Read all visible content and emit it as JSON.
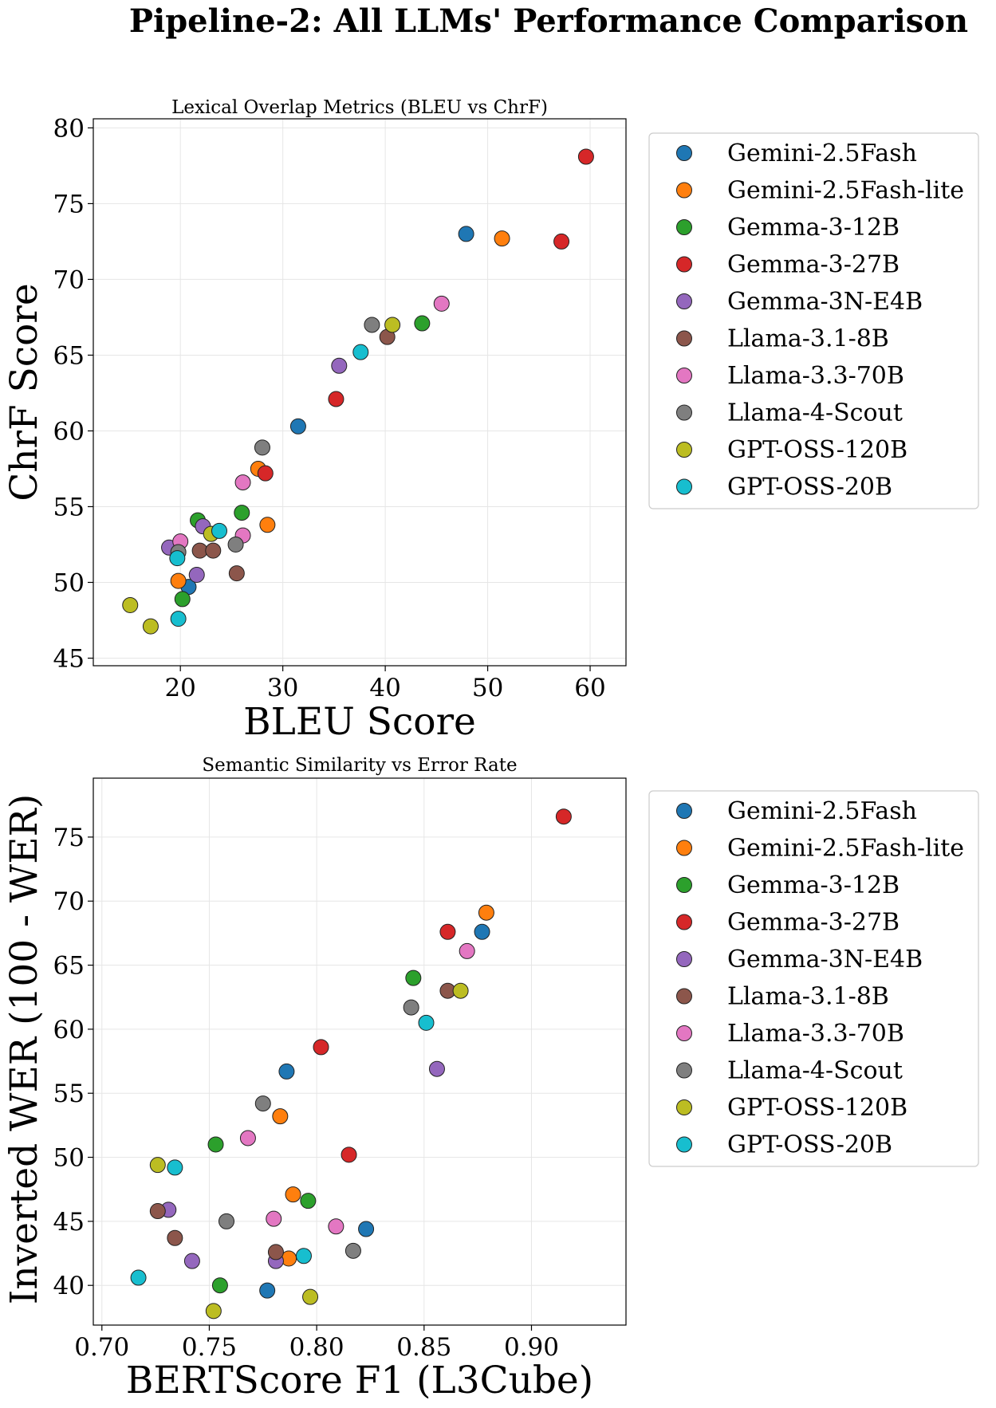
{
  "figure_title": "Pipeline-2: All LLMs' Performance Comparison",
  "models": [
    {
      "name": "Gemini-2.5Fash",
      "color": "#1f77b4"
    },
    {
      "name": "Gemini-2.5Fash-lite",
      "color": "#ff7f0e"
    },
    {
      "name": "Gemma-3-12B",
      "color": "#2ca02c"
    },
    {
      "name": "Gemma-3-27B",
      "color": "#d62728"
    },
    {
      "name": "Gemma-3N-E4B",
      "color": "#9467bd"
    },
    {
      "name": "Llama-3.1-8B",
      "color": "#8c564b"
    },
    {
      "name": "Llama-3.3-70B",
      "color": "#e377c2"
    },
    {
      "name": "Llama-4-Scout",
      "color": "#7f7f7f"
    },
    {
      "name": "GPT-OSS-120B",
      "color": "#bcbd22"
    },
    {
      "name": "GPT-OSS-20B",
      "color": "#17becf"
    }
  ],
  "chart_data": [
    {
      "type": "scatter",
      "title": "Lexical Overlap Metrics (BLEU vs ChrF)",
      "xlabel": "BLEU Score",
      "ylabel": "ChrF Score",
      "xlim": [
        11.5,
        63.5
      ],
      "ylim": [
        44.5,
        80.6
      ],
      "xticks": [
        20,
        30,
        40,
        50,
        60
      ],
      "xtick_labels": [
        "20",
        "30",
        "40",
        "50",
        "60"
      ],
      "yticks": [
        45,
        50,
        55,
        60,
        65,
        70,
        75,
        80
      ],
      "ytick_labels": [
        "45",
        "50",
        "55",
        "60",
        "65",
        "70",
        "75",
        "80"
      ],
      "grid": true,
      "legend_position": "outside-right",
      "series": [
        {
          "name": "Gemini-2.5Fash",
          "points": [
            [
              47.9,
              73.0
            ],
            [
              31.5,
              60.3
            ],
            [
              20.8,
              49.7
            ]
          ]
        },
        {
          "name": "Gemini-2.5Fash-lite",
          "points": [
            [
              51.4,
              72.7
            ],
            [
              27.6,
              57.5
            ],
            [
              28.5,
              53.8
            ],
            [
              19.8,
              50.1
            ]
          ]
        },
        {
          "name": "Gemma-3-12B",
          "points": [
            [
              43.6,
              67.1
            ],
            [
              26.0,
              54.6
            ],
            [
              21.7,
              54.1
            ],
            [
              20.2,
              48.9
            ]
          ]
        },
        {
          "name": "Gemma-3-27B",
          "points": [
            [
              59.6,
              78.1
            ],
            [
              57.2,
              72.5
            ],
            [
              35.2,
              62.1
            ],
            [
              28.3,
              57.2
            ]
          ]
        },
        {
          "name": "Gemma-3N-E4B",
          "points": [
            [
              35.5,
              64.3
            ],
            [
              22.2,
              53.7
            ],
            [
              18.9,
              52.3
            ],
            [
              21.6,
              50.5
            ]
          ]
        },
        {
          "name": "Llama-3.1-8B",
          "points": [
            [
              40.2,
              66.2
            ],
            [
              21.9,
              52.1
            ],
            [
              23.2,
              52.1
            ],
            [
              25.5,
              50.6
            ]
          ]
        },
        {
          "name": "Llama-3.3-70B",
          "points": [
            [
              45.5,
              68.4
            ],
            [
              26.1,
              56.6
            ],
            [
              20.0,
              52.7
            ],
            [
              26.1,
              53.1
            ]
          ]
        },
        {
          "name": "Llama-4-Scout",
          "points": [
            [
              38.7,
              67.0
            ],
            [
              28.0,
              58.9
            ],
            [
              25.4,
              52.5
            ],
            [
              19.8,
              52.0
            ]
          ]
        },
        {
          "name": "GPT-OSS-120B",
          "points": [
            [
              40.7,
              67.0
            ],
            [
              23.0,
              53.2
            ],
            [
              15.1,
              48.5
            ],
            [
              17.1,
              47.1
            ]
          ]
        },
        {
          "name": "GPT-OSS-20B",
          "points": [
            [
              37.6,
              65.2
            ],
            [
              23.8,
              53.4
            ],
            [
              19.7,
              51.6
            ],
            [
              19.8,
              47.6
            ]
          ]
        }
      ]
    },
    {
      "type": "scatter",
      "title": "Semantic Similarity vs Error Rate",
      "xlabel": "BERTScore F1 (L3Cube)",
      "ylabel": "Inverted WER (100 - WER)",
      "xlim": [
        0.696,
        0.944
      ],
      "ylim": [
        36.9,
        79.6
      ],
      "xticks": [
        0.7,
        0.75,
        0.8,
        0.85,
        0.9
      ],
      "xtick_labels": [
        "0.70",
        "0.75",
        "0.80",
        "0.85",
        "0.90"
      ],
      "yticks": [
        40,
        45,
        50,
        55,
        60,
        65,
        70,
        75
      ],
      "ytick_labels": [
        "40",
        "45",
        "50",
        "55",
        "60",
        "65",
        "70",
        "75"
      ],
      "grid": true,
      "legend_position": "outside-right",
      "series": [
        {
          "name": "Gemini-2.5Fash",
          "points": [
            [
              0.877,
              67.6
            ],
            [
              0.786,
              56.7
            ],
            [
              0.823,
              44.4
            ],
            [
              0.777,
              39.6
            ]
          ]
        },
        {
          "name": "Gemini-2.5Fash-lite",
          "points": [
            [
              0.879,
              69.1
            ],
            [
              0.783,
              53.2
            ],
            [
              0.789,
              47.1
            ],
            [
              0.787,
              42.1
            ]
          ]
        },
        {
          "name": "Gemma-3-12B",
          "points": [
            [
              0.845,
              64.0
            ],
            [
              0.753,
              51.0
            ],
            [
              0.796,
              46.6
            ],
            [
              0.755,
              40.0
            ]
          ]
        },
        {
          "name": "Gemma-3-27B",
          "points": [
            [
              0.915,
              76.6
            ],
            [
              0.861,
              67.6
            ],
            [
              0.802,
              58.6
            ],
            [
              0.815,
              50.2
            ]
          ]
        },
        {
          "name": "Gemma-3N-E4B",
          "points": [
            [
              0.856,
              56.9
            ],
            [
              0.731,
              45.9
            ],
            [
              0.742,
              41.9
            ],
            [
              0.781,
              41.9
            ]
          ]
        },
        {
          "name": "Llama-3.1-8B",
          "points": [
            [
              0.861,
              63.0
            ],
            [
              0.726,
              45.8
            ],
            [
              0.734,
              43.7
            ],
            [
              0.781,
              42.6
            ]
          ]
        },
        {
          "name": "Llama-3.3-70B",
          "points": [
            [
              0.87,
              66.1
            ],
            [
              0.768,
              51.5
            ],
            [
              0.78,
              45.2
            ],
            [
              0.809,
              44.6
            ]
          ]
        },
        {
          "name": "Llama-4-Scout",
          "points": [
            [
              0.844,
              61.7
            ],
            [
              0.775,
              54.2
            ],
            [
              0.758,
              45.0
            ],
            [
              0.817,
              42.7
            ]
          ]
        },
        {
          "name": "GPT-OSS-120B",
          "points": [
            [
              0.867,
              63.0
            ],
            [
              0.726,
              49.4
            ],
            [
              0.797,
              39.1
            ],
            [
              0.752,
              38.0
            ]
          ]
        },
        {
          "name": "GPT-OSS-20B",
          "points": [
            [
              0.851,
              60.5
            ],
            [
              0.734,
              49.2
            ],
            [
              0.794,
              42.3
            ],
            [
              0.717,
              40.6
            ]
          ]
        }
      ]
    }
  ]
}
